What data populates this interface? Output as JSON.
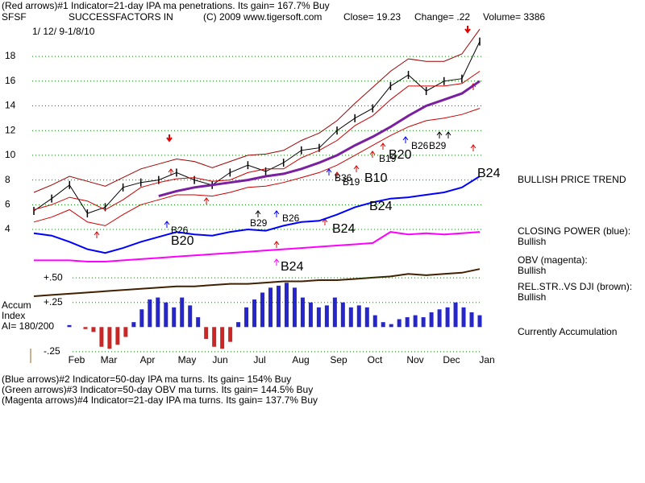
{
  "chart_data": {
    "type": "line",
    "header": {
      "line1": "(Red arrows)#1 Indicator=21-day IPA ma penetrations. Its gain= 167.7% Buy",
      "symbol": "SFSF",
      "company": "SUCCESSFACTORS IN",
      "copyright": "(C) 2009 www.tigersoft.com",
      "close": "Close= 19.23",
      "change": "Change= .22",
      "volume": "Volume= 3386",
      "range": "1/ 12/ 9-1/8/10"
    },
    "months": [
      "Feb",
      "Mar",
      "Apr",
      "May",
      "Jun",
      "Jul",
      "Aug",
      "Sep",
      "Oct",
      "Nov",
      "Dec",
      "Jan"
    ],
    "ylim": [
      -1.5,
      21
    ],
    "yticks": [
      4,
      6,
      8,
      10,
      12,
      14,
      16,
      18
    ],
    "grid": true,
    "series": [
      {
        "name": "Close",
        "color": "#000000",
        "values": [
          5.5,
          6.5,
          7.6,
          5.3,
          5.8,
          7.4,
          7.8,
          8.0,
          8.6,
          8.0,
          7.6,
          8.6,
          9.2,
          8.7,
          9.4,
          10.4,
          10.6,
          12.0,
          13.0,
          13.8,
          15.6,
          16.5,
          15.2,
          16.0,
          16.2,
          19.2
        ]
      },
      {
        "name": "Upper band",
        "color": "#a00000",
        "values": [
          7.0,
          7.6,
          8.3,
          7.9,
          7.5,
          8.2,
          8.9,
          9.3,
          9.7,
          9.5,
          9.0,
          9.5,
          10.0,
          10.1,
          10.4,
          11.2,
          11.8,
          12.8,
          14.2,
          15.5,
          16.8,
          17.8,
          17.6,
          17.6,
          18.2,
          20.2
        ]
      },
      {
        "name": "Lower band",
        "color": "#cc0000",
        "values": [
          4.6,
          5.0,
          5.6,
          4.6,
          4.3,
          5.2,
          6.0,
          6.4,
          6.8,
          6.8,
          6.7,
          7.0,
          7.4,
          7.5,
          7.8,
          8.2,
          8.6,
          9.2,
          10.0,
          10.8,
          11.6,
          12.3,
          12.8,
          13.0,
          13.3,
          13.8
        ]
      },
      {
        "name": "21-day ma",
        "color": "#cc0000",
        "values": [
          5.6,
          6.0,
          6.6,
          6.3,
          5.6,
          6.4,
          7.4,
          7.8,
          8.1,
          8.2,
          7.9,
          8.0,
          8.6,
          8.9,
          8.9,
          9.8,
          10.4,
          11.2,
          12.4,
          13.2,
          14.5,
          15.6,
          15.6,
          15.6,
          15.8,
          16.8
        ]
      },
      {
        "name": "50-day ma",
        "color": "#7a1fa0",
        "values": [
          null,
          null,
          null,
          null,
          null,
          null,
          null,
          6.7,
          7.1,
          7.4,
          7.6,
          7.8,
          8.0,
          8.3,
          8.5,
          8.9,
          9.4,
          10.0,
          10.8,
          11.5,
          12.3,
          13.2,
          14.0,
          14.5,
          15.0,
          16.0
        ]
      },
      {
        "name": "Closing Power",
        "color": "#0000ff",
        "values": [
          3.7,
          3.5,
          3.0,
          2.4,
          2.1,
          2.5,
          3.0,
          3.4,
          3.8,
          3.6,
          3.5,
          3.8,
          4.0,
          3.9,
          4.3,
          4.6,
          4.7,
          5.2,
          5.8,
          6.2,
          6.5,
          6.6,
          6.8,
          7.0,
          7.4,
          8.3
        ]
      },
      {
        "name": "OBV",
        "color": "#ff00ff",
        "values": [
          1.5,
          1.5,
          1.5,
          1.4,
          1.4,
          1.5,
          1.6,
          1.7,
          1.8,
          1.9,
          2.0,
          2.1,
          2.2,
          2.3,
          2.4,
          2.5,
          2.6,
          2.7,
          2.8,
          2.9,
          3.8,
          3.6,
          3.7,
          3.6,
          3.7,
          3.8
        ]
      },
      {
        "name": "Rel.Str",
        "color": "#402000",
        "values": [
          -1.4,
          -1.3,
          -1.2,
          -1.1,
          -1.0,
          -0.9,
          -0.8,
          -0.7,
          -0.6,
          -0.6,
          -0.5,
          -0.4,
          -0.4,
          -0.3,
          -0.2,
          -0.2,
          -0.1,
          -0.1,
          0.0,
          0.1,
          0.2,
          0.4,
          0.3,
          0.4,
          0.5,
          0.8
        ]
      }
    ],
    "annotations": [
      "B26",
      "B20",
      "B29",
      "B26",
      "B24",
      "B24",
      "B36",
      "B19",
      "B10",
      "B24",
      "B19",
      "B20",
      "B26",
      "B29",
      "B24"
    ],
    "accum": {
      "labels": [
        "Accum",
        "Index",
        "AI= 180/200"
      ],
      "ylim": [
        -0.3,
        0.55
      ],
      "yticks": [
        {
          "value": 0.5,
          "label": "+.50"
        },
        {
          "value": 0.25,
          "label": "+.25"
        },
        {
          "value": -0.25,
          "label": "-.25"
        }
      ],
      "pos_color": "#0000c0",
      "neg_color": "#c00000",
      "values": [
        0.02,
        0.0,
        -0.02,
        -0.05,
        -0.2,
        -0.22,
        -0.18,
        -0.1,
        0.05,
        0.18,
        0.28,
        0.3,
        0.25,
        0.2,
        0.3,
        0.22,
        0.1,
        -0.12,
        -0.2,
        -0.22,
        -0.15,
        0.05,
        0.2,
        0.28,
        0.35,
        0.4,
        0.42,
        0.45,
        0.4,
        0.3,
        0.25,
        0.2,
        0.22,
        0.3,
        0.25,
        0.2,
        0.22,
        0.2,
        0.12,
        0.05,
        0.03,
        0.08,
        0.1,
        0.12,
        0.1,
        0.15,
        0.18,
        0.2,
        0.25,
        0.2,
        0.15,
        0.12
      ]
    },
    "side_labels": [
      "BULLISH PRICE TREND",
      "CLOSING POWER (blue):",
      "Bullish",
      "OBV (magenta):",
      "Bullish",
      "REL.STR..VS DJI (brown):",
      "Bullish",
      "Currently Accumulation"
    ],
    "footer": [
      "(Blue arrows)#2 Indicator=50-day IPA ma turns. Its gain= 154% Buy",
      "(Green arrows)#3 Indicator=50-day OBV ma turns. Its gain= 144.5% Buy",
      "(Magenta arrows)#4 Indicator=21-day IPA ma turns. Its gain= 137.7% Buy"
    ]
  }
}
